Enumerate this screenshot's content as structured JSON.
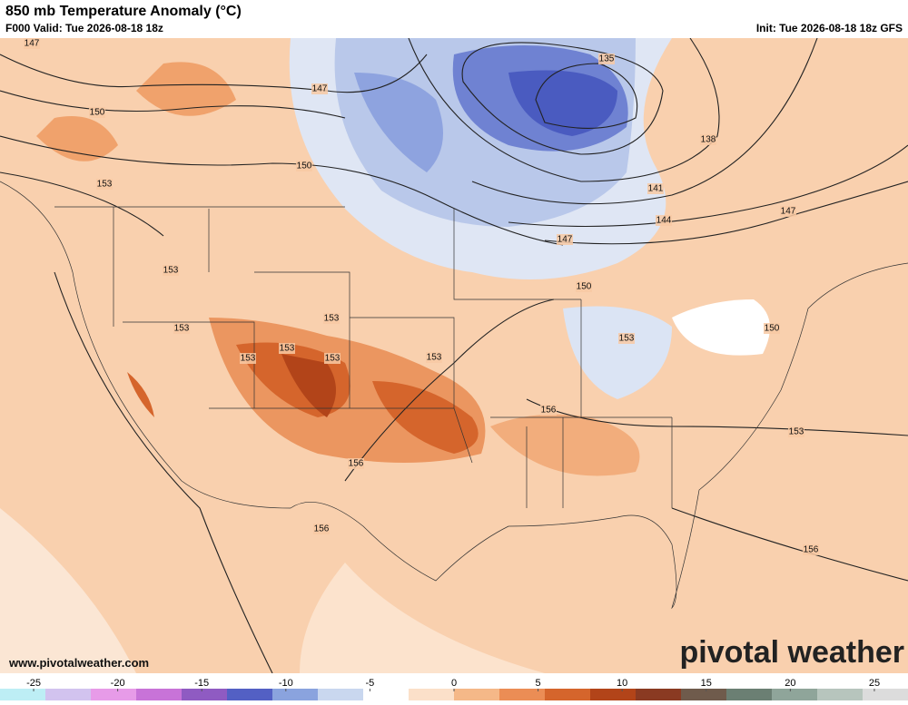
{
  "header": {
    "title": "850 mb Temperature Anomaly (°C)",
    "valid": "F000 Valid: Tue 2026-08-18 18z",
    "init": "Init: Tue 2026-08-18 18z GFS"
  },
  "map": {
    "contour_labels": [
      "147",
      "147",
      "150",
      "150",
      "153",
      "135",
      "138",
      "141",
      "144",
      "147",
      "147",
      "150",
      "153",
      "153",
      "153",
      "153",
      "153",
      "153",
      "153",
      "153",
      "150",
      "156",
      "153",
      "156",
      "156",
      "156"
    ]
  },
  "footer": {
    "website": "www.pivotalweather.com",
    "logo": "pivotal weather"
  },
  "colorbar": {
    "lim": [
      -27,
      27
    ],
    "ticks": [
      -25,
      -20,
      -15,
      -10,
      -5,
      0,
      5,
      10,
      15,
      20,
      25
    ],
    "colors": [
      "#bdeef5",
      "#d2c3ef",
      "#e79be8",
      "#c873d8",
      "#8f5bc2",
      "#5360c4",
      "#8aa3de",
      "#c9d7ef",
      "#ffffff",
      "#fbe0c9",
      "#f5b888",
      "#eb8d55",
      "#d5652c",
      "#b24419",
      "#8a3a22",
      "#6f5b4c",
      "#6b7f73",
      "#8fa59a",
      "#b7c5bd",
      "#dcdcdc"
    ]
  }
}
